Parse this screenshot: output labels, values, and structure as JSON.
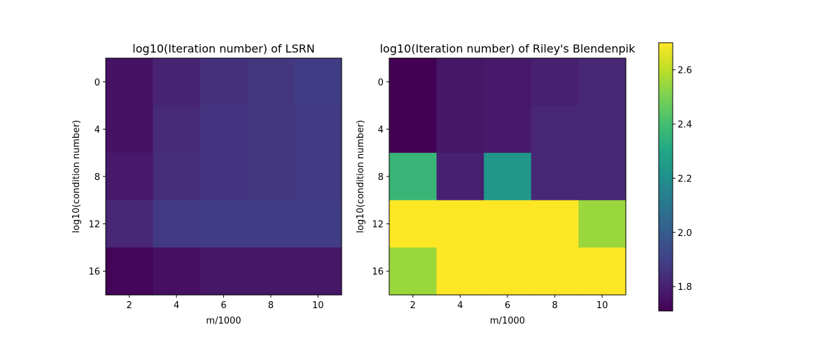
{
  "chart_data": [
    {
      "type": "heatmap",
      "title": "log10(Iteration number) of LSRN",
      "xlabel": "m/1000",
      "ylabel": "log10(condition number)",
      "x": [
        2,
        4,
        6,
        8,
        10
      ],
      "y": [
        0,
        4,
        8,
        12,
        16
      ],
      "xticks": [
        "2",
        "4",
        "6",
        "8",
        "10"
      ],
      "yticks": [
        "0",
        "4",
        "8",
        "12",
        "16"
      ],
      "values": [
        [
          1.76,
          1.81,
          1.85,
          1.87,
          1.89
        ],
        [
          1.76,
          1.83,
          1.86,
          1.87,
          1.88
        ],
        [
          1.78,
          1.84,
          1.86,
          1.87,
          1.88
        ],
        [
          1.82,
          1.88,
          1.89,
          1.89,
          1.89
        ],
        [
          1.72,
          1.75,
          1.77,
          1.77,
          1.77
        ]
      ]
    },
    {
      "type": "heatmap",
      "title": "log10(Iteration number) of Riley's Blendenpik",
      "xlabel": "m/1000",
      "ylabel": "log10(condition number)",
      "x": [
        2,
        4,
        6,
        8,
        10
      ],
      "y": [
        0,
        4,
        8,
        12,
        16
      ],
      "xticks": [
        "2",
        "4",
        "6",
        "8",
        "10"
      ],
      "yticks": [
        "0",
        "4",
        "8",
        "12",
        "16"
      ],
      "values": [
        [
          1.71,
          1.77,
          1.78,
          1.8,
          1.82
        ],
        [
          1.71,
          1.77,
          1.78,
          1.82,
          1.82
        ],
        [
          2.37,
          1.8,
          2.23,
          1.82,
          1.82
        ],
        [
          2.7,
          2.7,
          2.7,
          2.7,
          2.55
        ],
        [
          2.55,
          2.7,
          2.7,
          2.7,
          2.7
        ]
      ]
    }
  ],
  "colorbar": {
    "vmin": 1.71,
    "vmax": 2.7,
    "ticks": [
      1.8,
      2.0,
      2.2,
      2.4,
      2.6
    ],
    "tick_labels": [
      "1.8",
      "2.0",
      "2.2",
      "2.4",
      "2.6"
    ],
    "colormap": "viridis"
  }
}
